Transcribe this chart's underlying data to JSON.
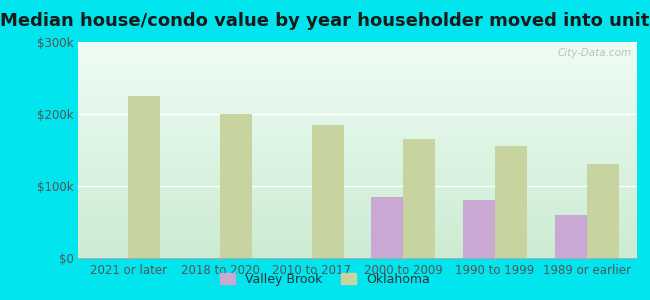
{
  "title": "Median house/condo value by year householder moved into unit",
  "categories": [
    "2021 or later",
    "2018 to 2020",
    "2010 to 2017",
    "2000 to 2009",
    "1990 to 1999",
    "1989 or earlier"
  ],
  "valley_brook": [
    0,
    0,
    0,
    85000,
    80000,
    60000
  ],
  "oklahoma": [
    225000,
    200000,
    185000,
    165000,
    155000,
    130000
  ],
  "valley_brook_color": "#c9a8d4",
  "oklahoma_color": "#c8d4a0",
  "background_outer": "#00e5ee",
  "ylim": [
    0,
    300000
  ],
  "yticks": [
    0,
    100000,
    200000,
    300000
  ],
  "ytick_labels": [
    "$0",
    "$100k",
    "$200k",
    "$300k"
  ],
  "watermark": "City-Data.com",
  "legend_labels": [
    "Valley Brook",
    "Oklahoma"
  ],
  "title_fontsize": 13,
  "bar_width": 0.35,
  "tick_fontsize": 8.5
}
